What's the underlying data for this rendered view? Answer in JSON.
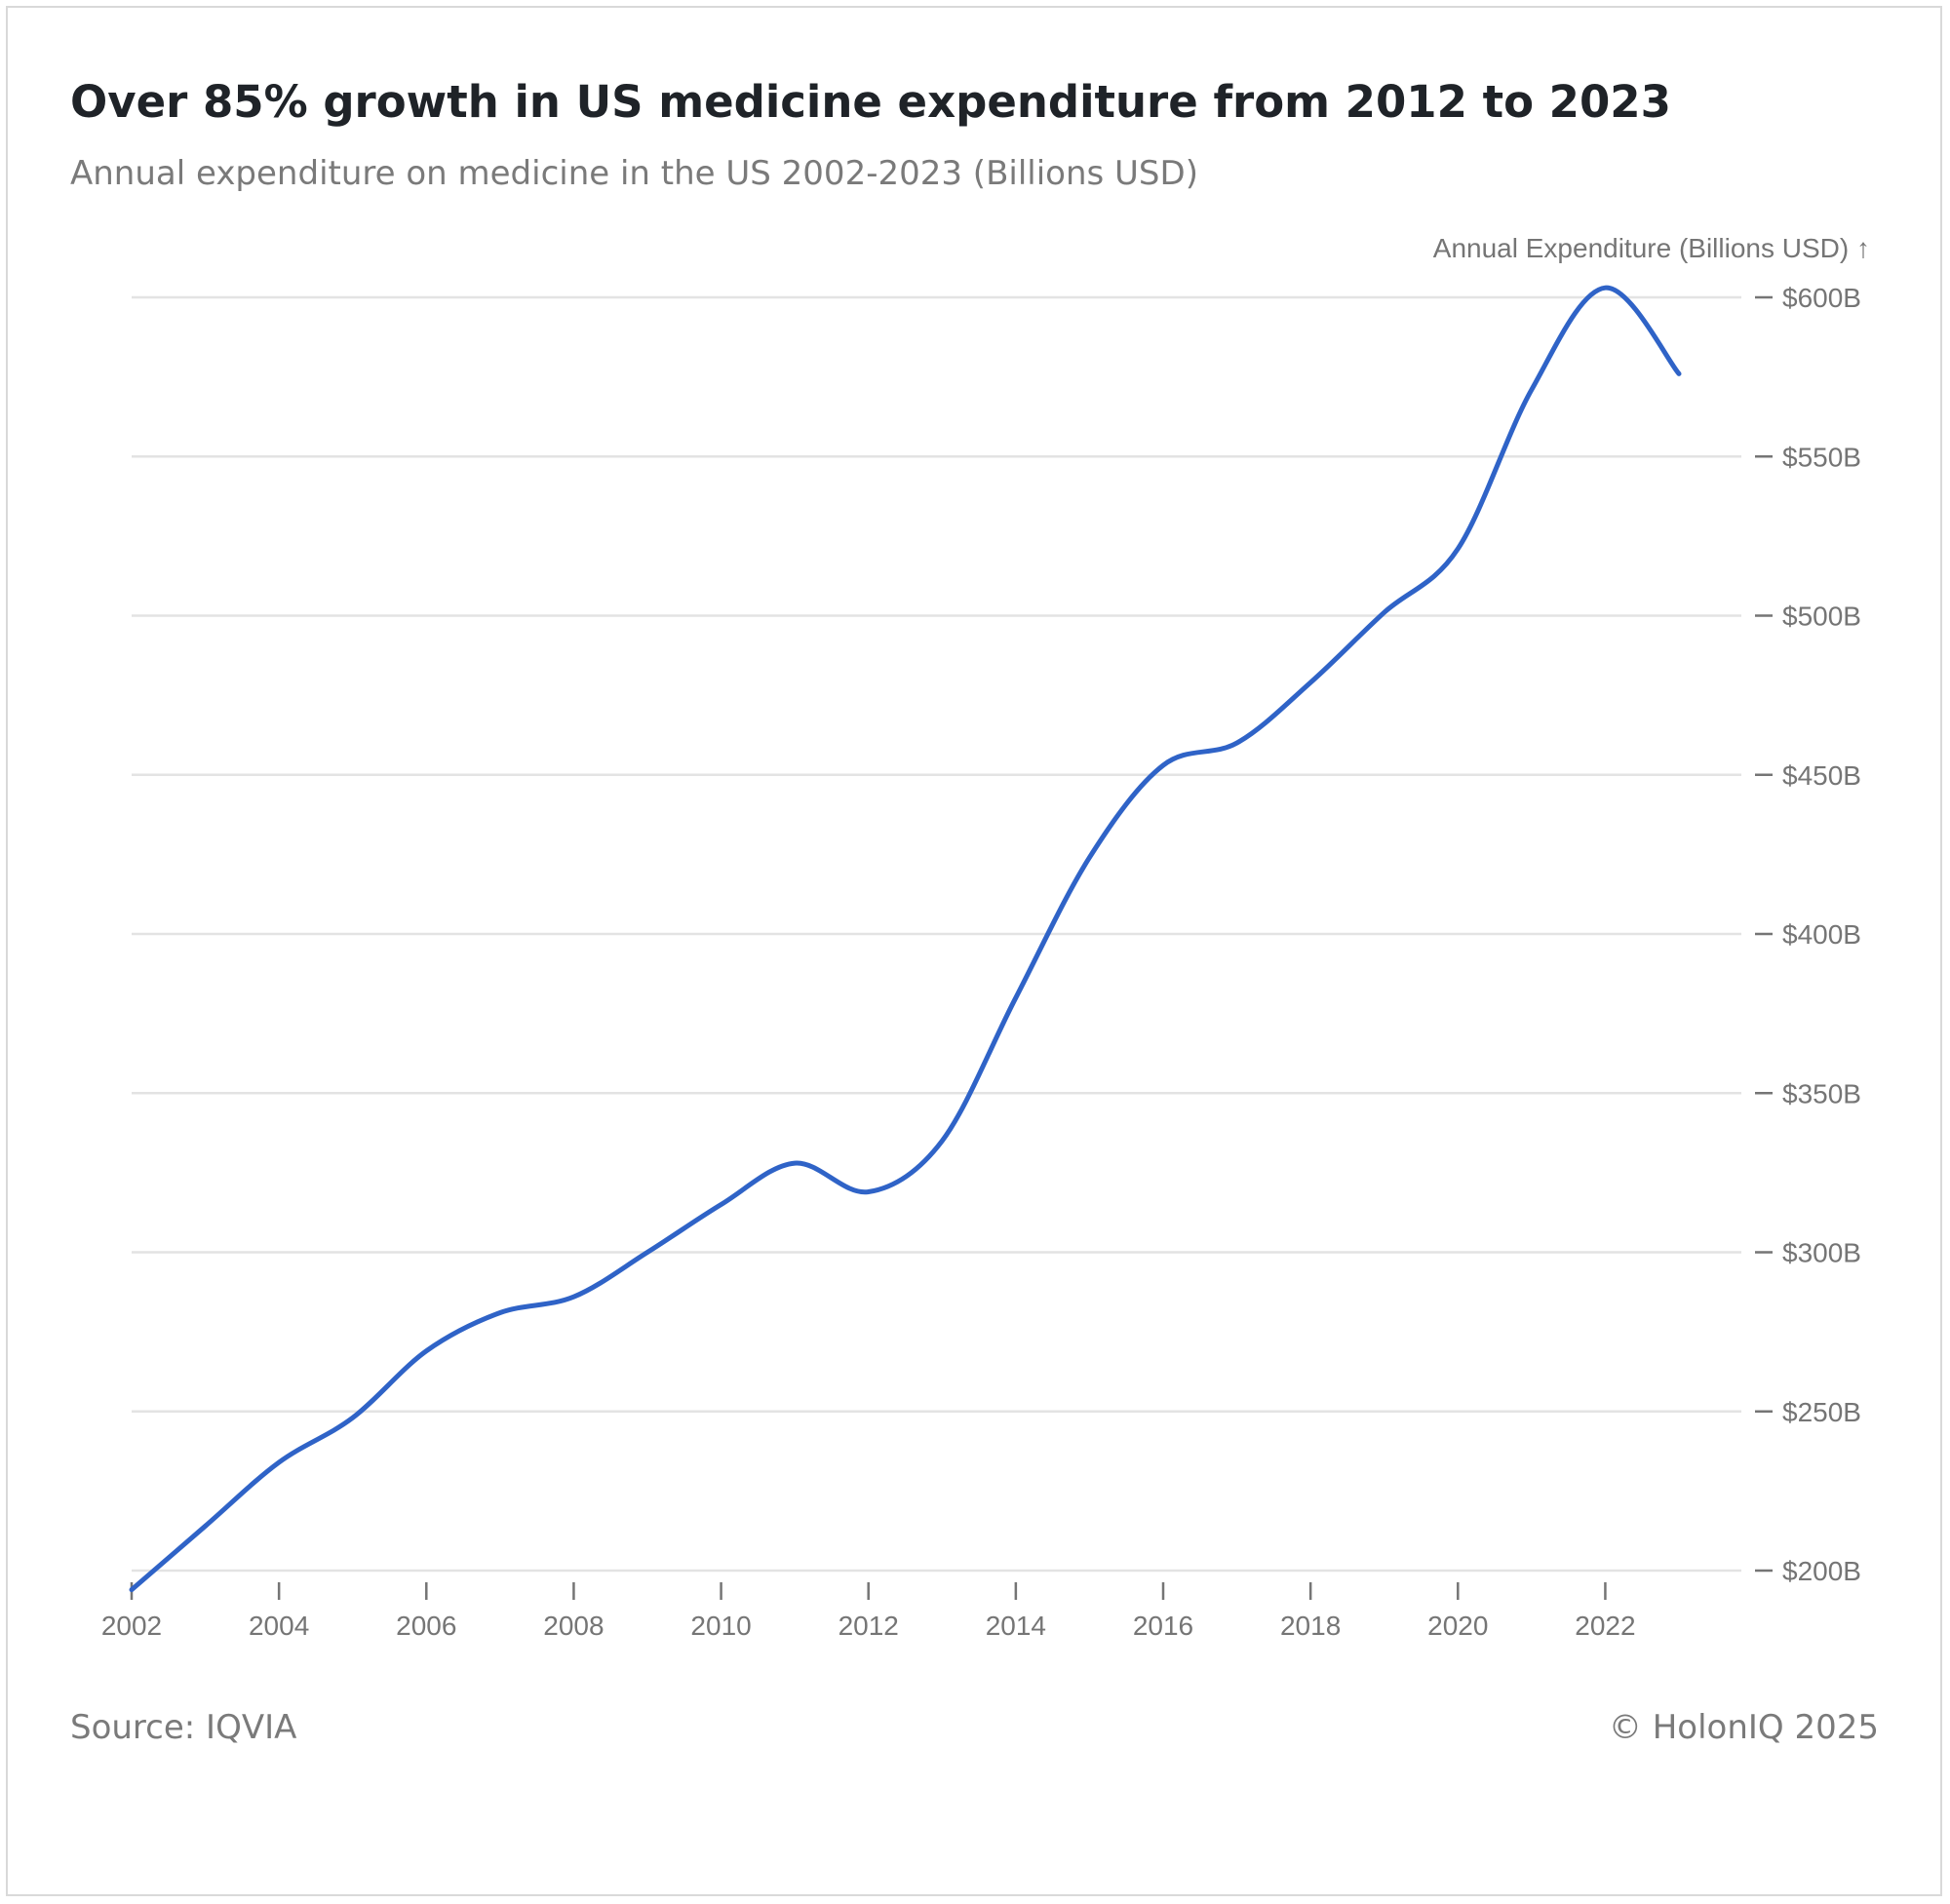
{
  "header": {
    "title": "Over 85% growth in US medicine expenditure from 2012 to 2023",
    "subtitle": "Annual expenditure on medicine in the US 2002-2023 (Billions USD)"
  },
  "footer": {
    "source": "Source: IQVIA",
    "copyright": "© HolonIQ 2025"
  },
  "colors": {
    "line": "#2f63c7",
    "grid": "#e3e3e3",
    "axis_text": "#757575"
  },
  "chart_data": {
    "type": "line",
    "title": "Over 85% growth in US medicine expenditure from 2012 to 2023",
    "subtitle": "Annual expenditure on medicine in the US 2002-2023 (Billions USD)",
    "xlabel": "",
    "ylabel": "Annual Expenditure (Billions USD) ↑",
    "x": [
      2002,
      2003,
      2004,
      2005,
      2006,
      2007,
      2008,
      2009,
      2010,
      2011,
      2012,
      2013,
      2014,
      2015,
      2016,
      2017,
      2018,
      2019,
      2020,
      2021,
      2022,
      2023
    ],
    "series": [
      {
        "values": [
          194,
          214,
          234,
          248,
          269,
          281,
          286,
          300,
          315,
          328,
          319,
          335,
          380,
          424,
          453,
          460,
          479,
          501,
          521,
          571,
          603,
          576
        ]
      }
    ],
    "xlim": [
      2002,
      2023
    ],
    "ylim": [
      200,
      600
    ],
    "x_ticks": [
      2002,
      2004,
      2006,
      2008,
      2010,
      2012,
      2014,
      2016,
      2018,
      2020,
      2022
    ],
    "x_tick_labels": [
      "2002",
      "2004",
      "2006",
      "2008",
      "2010",
      "2012",
      "2014",
      "2016",
      "2018",
      "2020",
      "2022"
    ],
    "y_ticks": [
      200,
      250,
      300,
      350,
      400,
      450,
      500,
      550,
      600
    ],
    "y_tick_labels": [
      "$200B",
      "$250B",
      "$300B",
      "$350B",
      "$400B",
      "$450B",
      "$500B",
      "$550B",
      "$600B"
    ],
    "y_axis_position": "right",
    "grid": true,
    "legend": "none"
  }
}
